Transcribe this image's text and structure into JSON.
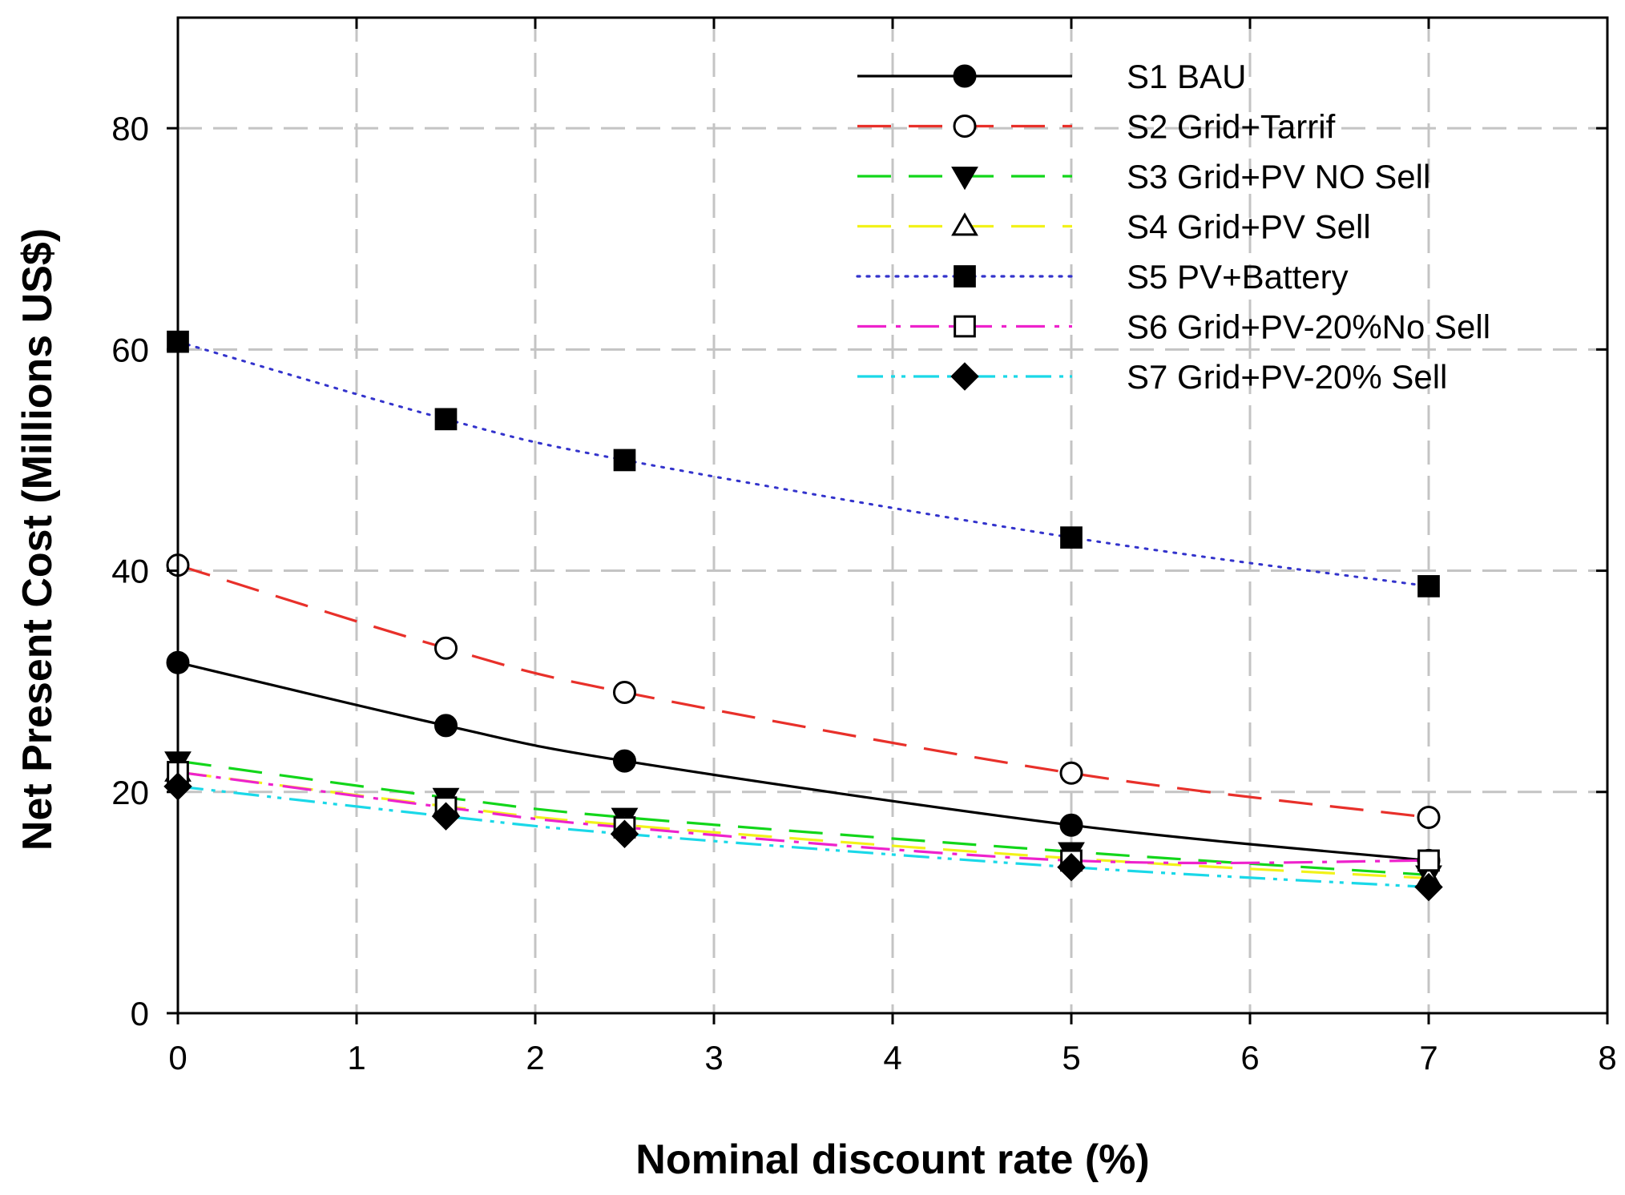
{
  "chart_data": {
    "type": "line",
    "title": "",
    "xlabel": "Nominal discount rate (%)",
    "ylabel": "Net Present Cost (Millions US$)",
    "xlim": [
      0,
      8
    ],
    "ylim": [
      0,
      90
    ],
    "xticks": [
      0,
      1,
      2,
      3,
      4,
      5,
      6,
      7,
      8
    ],
    "yticks": [
      0,
      20,
      40,
      60,
      80
    ],
    "grid": true,
    "legend_position": "top-right",
    "x": [
      0,
      1.5,
      2.5,
      5,
      7
    ],
    "series": [
      {
        "name": "S1 BAU",
        "values": [
          31.7,
          26.0,
          22.8,
          17.0,
          13.8
        ],
        "color": "#000000",
        "dash": "solid",
        "marker": "circle-filled"
      },
      {
        "name": "S2 Grid+Tarrif",
        "values": [
          40.5,
          33.0,
          29.0,
          21.7,
          17.7
        ],
        "color": "#e8302a",
        "dash": "long",
        "marker": "circle-open"
      },
      {
        "name": "S3 Grid+PV NO Sell",
        "values": [
          22.8,
          19.5,
          17.7,
          14.6,
          12.5
        ],
        "color": "#12d61a",
        "dash": "long",
        "marker": "triangle-down-filled"
      },
      {
        "name": "S4 Grid+PV Sell",
        "values": [
          21.8,
          18.7,
          17.0,
          14.0,
          12.2
        ],
        "color": "#f2f21a",
        "dash": "long",
        "marker": "triangle-up-open"
      },
      {
        "name": "S5 PV+Battery",
        "values": [
          60.7,
          53.7,
          50.0,
          43.0,
          38.6
        ],
        "color": "#3333cc",
        "dash": "dotted",
        "marker": "square-filled"
      },
      {
        "name": "S6 Grid+PV-20%No Sell",
        "values": [
          21.8,
          18.6,
          16.8,
          13.8,
          13.8
        ],
        "color": "#ee22cc",
        "dash": "dashdot",
        "marker": "square-open"
      },
      {
        "name": "S7 Grid+PV-20% Sell",
        "values": [
          20.5,
          17.8,
          16.2,
          13.2,
          11.4
        ],
        "color": "#1ad8e8",
        "dash": "dashdotdot",
        "marker": "diamond-filled"
      }
    ]
  }
}
